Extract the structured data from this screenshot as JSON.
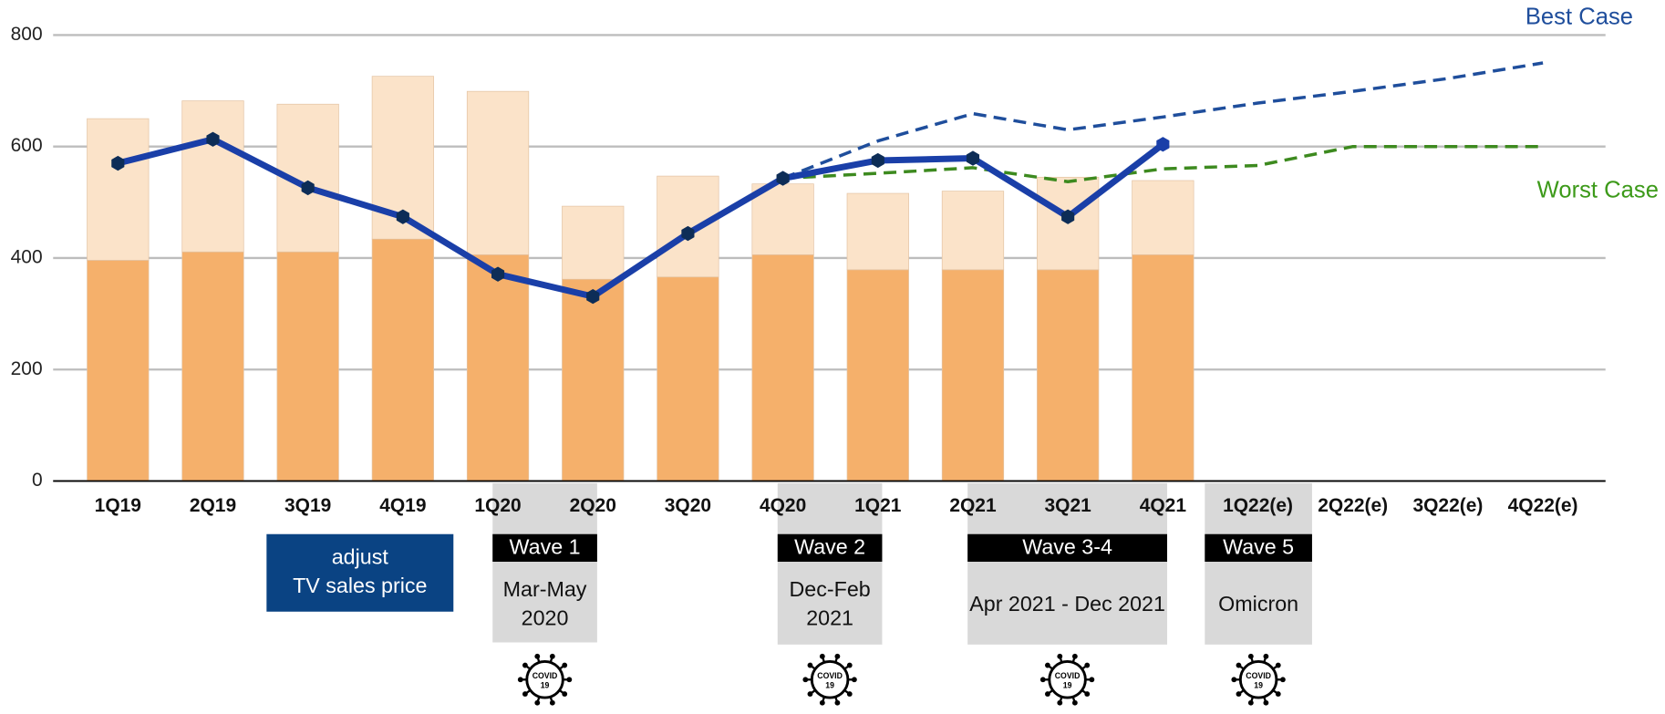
{
  "chart_data": {
    "type": "bar",
    "categories": [
      "1Q19",
      "2Q19",
      "3Q19",
      "4Q19",
      "1Q20",
      "2Q20",
      "3Q20",
      "4Q20",
      "1Q21",
      "2Q21",
      "3Q21",
      "4Q21",
      "1Q22(e)",
      "2Q22(e)",
      "3Q22(e)",
      "4Q22(e)"
    ],
    "stacked": true,
    "series": [
      {
        "color": "#f5b06b",
        "values": [
          396,
          411,
          411,
          434,
          406,
          362,
          366,
          406,
          379,
          379,
          379,
          406,
          null,
          null,
          null,
          null
        ]
      },
      {
        "color": "#fbe3c9",
        "values": [
          254,
          271,
          265,
          292,
          293,
          131,
          181,
          127,
          137,
          141,
          166,
          133,
          null,
          null,
          null,
          null
        ]
      }
    ],
    "lines": [
      {
        "color": "#1a3fa8",
        "marker_color": "#0d2d57",
        "values": [
          570,
          613,
          526,
          474,
          371,
          331,
          444,
          543,
          575,
          579,
          474,
          604,
          null,
          null,
          null,
          null
        ]
      },
      {
        "name": "Best Case",
        "color": "#1f4e9c",
        "dashed": true,
        "values": [
          null,
          null,
          null,
          null,
          null,
          null,
          null,
          543,
          610,
          659,
          630,
          653,
          678,
          699,
          722,
          750
        ]
      },
      {
        "name": "Worst Case",
        "color": "#3d8a1f",
        "dashed": true,
        "values": [
          null,
          null,
          null,
          null,
          null,
          null,
          null,
          543,
          552,
          562,
          537,
          560,
          566,
          600,
          600,
          600
        ]
      }
    ],
    "ylim": [
      0,
      800
    ],
    "yticks": [
      0,
      200,
      400,
      600,
      800
    ],
    "grid": true
  },
  "annotations": {
    "price_note": [
      "adjust",
      "TV sales price"
    ],
    "waves": [
      {
        "label": "Wave 1",
        "detail": [
          "Mar-May",
          "2020"
        ]
      },
      {
        "label": "Wave 2",
        "detail": [
          "Dec-Feb",
          "2021"
        ]
      },
      {
        "label": "Wave 3-4",
        "detail": [
          "Apr 2021 - Dec 2021"
        ]
      },
      {
        "label": "Wave 5",
        "detail": [
          "Omicron"
        ]
      }
    ],
    "covid_icon": [
      "COVID",
      "19"
    ]
  }
}
